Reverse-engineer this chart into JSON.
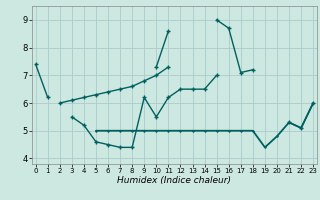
{
  "xlabel": "Humidex (Indice chaleur)",
  "background_color": "#cce8e0",
  "grid_color": "#aacccc",
  "line_color": "#006060",
  "x": [
    0,
    1,
    2,
    3,
    4,
    5,
    6,
    7,
    8,
    9,
    10,
    11,
    12,
    13,
    14,
    15,
    16,
    17,
    18,
    19,
    20,
    21,
    22,
    23
  ],
  "l1": [
    7.4,
    6.2,
    null,
    null,
    null,
    null,
    null,
    null,
    null,
    null,
    7.3,
    8.6,
    null,
    null,
    null,
    9.0,
    8.7,
    7.1,
    7.2,
    null,
    null,
    null,
    null,
    null
  ],
  "l2": [
    null,
    null,
    null,
    5.5,
    5.2,
    4.6,
    4.5,
    4.4,
    4.4,
    6.2,
    5.5,
    6.2,
    6.5,
    6.5,
    6.5,
    7.0,
    null,
    null,
    null,
    null,
    null,
    5.3,
    5.1,
    6.0
  ],
  "l3": [
    null,
    null,
    null,
    null,
    null,
    5.0,
    5.0,
    5.0,
    5.0,
    5.0,
    5.0,
    5.0,
    5.0,
    5.0,
    5.0,
    5.0,
    5.0,
    5.0,
    5.0,
    4.4,
    4.8,
    5.3,
    5.1,
    6.0
  ],
  "l4": [
    null,
    null,
    6.0,
    6.1,
    6.2,
    6.3,
    6.4,
    6.5,
    6.6,
    6.8,
    7.0,
    7.3,
    null,
    null,
    null,
    null,
    null,
    null,
    null,
    null,
    null,
    null,
    null,
    null
  ],
  "ylim": [
    3.8,
    9.5
  ],
  "xlim": [
    -0.3,
    23.3
  ],
  "yticks": [
    4,
    5,
    6,
    7,
    8,
    9
  ],
  "xticks": [
    0,
    1,
    2,
    3,
    4,
    5,
    6,
    7,
    8,
    9,
    10,
    11,
    12,
    13,
    14,
    15,
    16,
    17,
    18,
    19,
    20,
    21,
    22,
    23
  ],
  "figw": 3.2,
  "figh": 2.0,
  "dpi": 100
}
